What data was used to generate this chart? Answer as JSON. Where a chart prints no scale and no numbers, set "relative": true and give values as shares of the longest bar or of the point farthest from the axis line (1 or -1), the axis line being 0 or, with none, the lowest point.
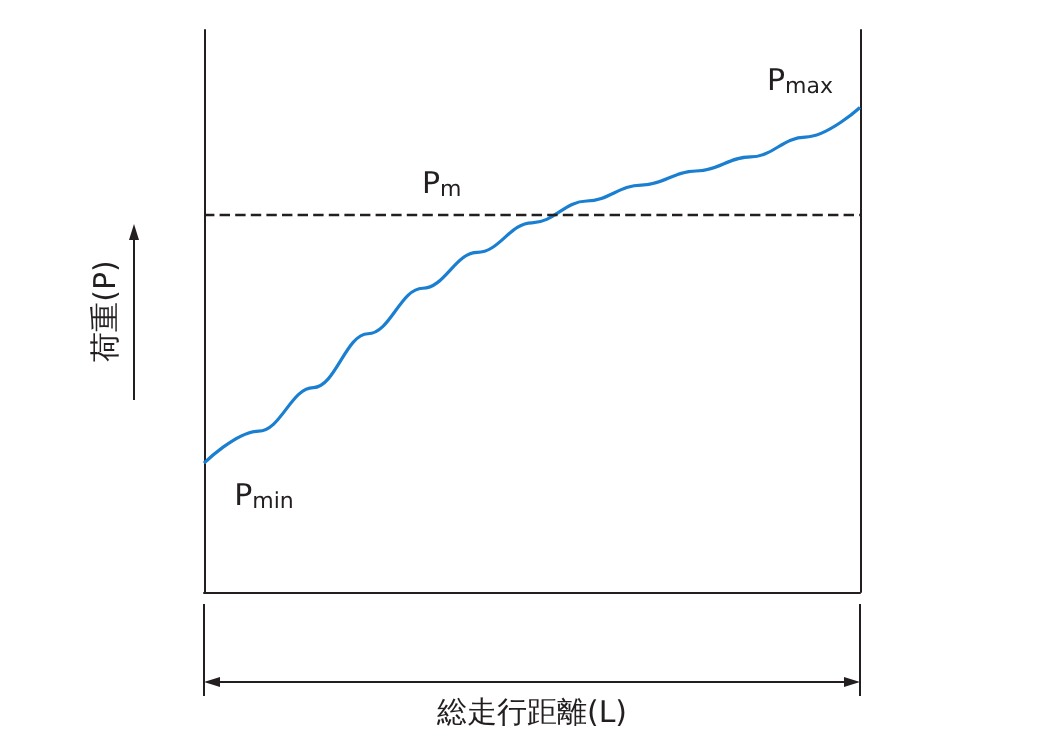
{
  "chart_data": {
    "type": "line",
    "relative": true,
    "xlabel": "総走行距離(L)",
    "ylabel": "荷重(P)",
    "categories": [
      null,
      null,
      null,
      null,
      null,
      null,
      null,
      null,
      null,
      null,
      null,
      null,
      null
    ],
    "series": [
      {
        "color": "#1a7fd0",
        "values": [
          0.266,
          0.332,
          0.422,
          0.533,
          0.627,
          0.701,
          0.762,
          0.807,
          0.84,
          0.869,
          0.898,
          0.939,
          1
        ]
      }
    ],
    "ref_lines": [
      {
        "axis": "y",
        "value": 0.78,
        "label": "P$_{m}$",
        "color": "#231f20",
        "line_style": "dashed"
      }
    ],
    "annotations": [
      "P$_{min}$",
      "P$_{max}$"
    ],
    "marker": "none",
    "line_style": "solid",
    "grid": false
  }
}
